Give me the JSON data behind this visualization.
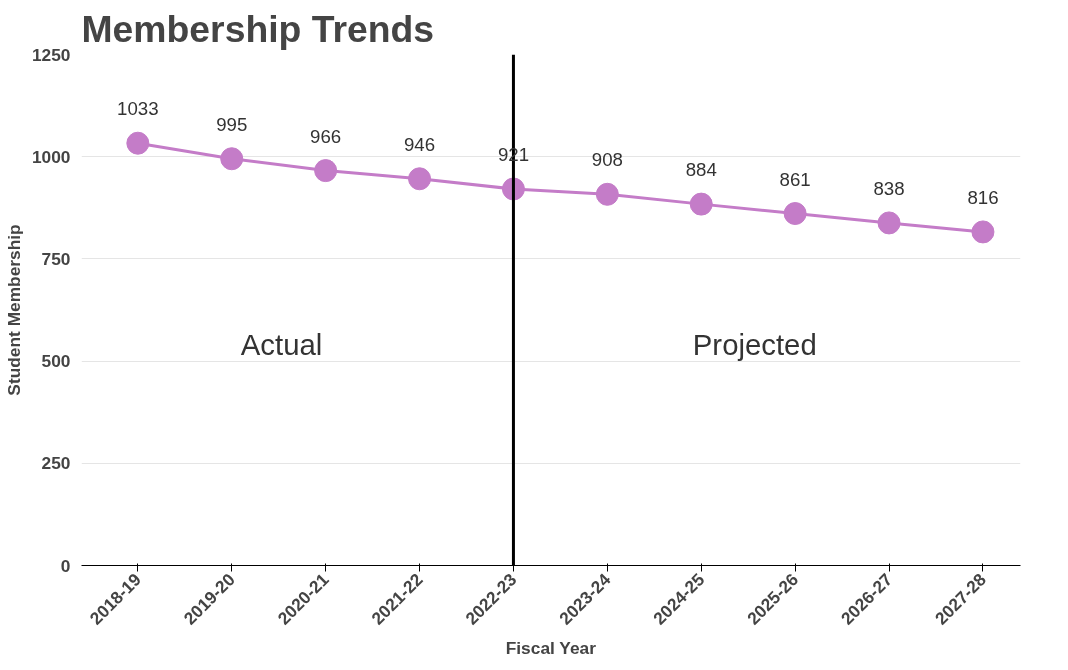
{
  "chart_data": {
    "type": "line",
    "title": "Membership Trends",
    "xlabel": "Fiscal Year",
    "ylabel": "Student Membership",
    "categories": [
      "2018-19",
      "2019-20",
      "2020-21",
      "2021-22",
      "2022-23",
      "2023-24",
      "2024-25",
      "2025-26",
      "2026-27",
      "2027-28"
    ],
    "series": [
      {
        "color": "#c47cc8",
        "values": [
          1033,
          995,
          966,
          946,
          921,
          908,
          884,
          861,
          838,
          816
        ]
      }
    ],
    "ylim": [
      0,
      1250
    ],
    "yticks": [
      0,
      250,
      500,
      750,
      1000,
      1250
    ],
    "ref_lines": [
      {
        "axis": "x",
        "value": "2022-23",
        "color": "#000000"
      }
    ],
    "annotations": [
      "Actual",
      "Projected"
    ],
    "data_labels": true,
    "grid": "y",
    "marker": "circle",
    "line_style": "solid"
  }
}
